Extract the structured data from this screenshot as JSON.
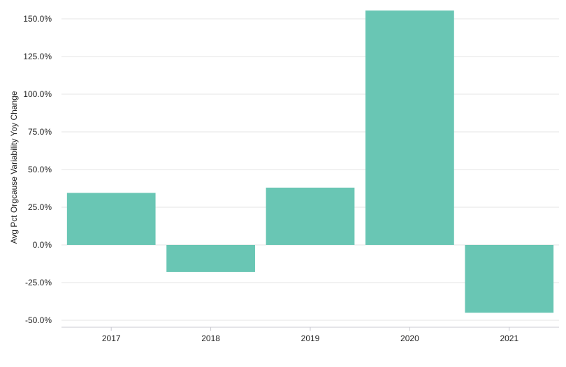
{
  "chart_data": {
    "type": "bar",
    "categories": [
      "2017",
      "2018",
      "2019",
      "2020",
      "2021"
    ],
    "values": [
      34.5,
      -18.0,
      38.0,
      155.5,
      -45.0
    ],
    "title": "",
    "xlabel": "",
    "ylabel": "Avg Pct Orgcause Variability Yoy Change",
    "ylim": [
      -55,
      158
    ],
    "yticks": [
      -50,
      -25,
      0,
      25,
      50,
      75,
      100,
      125,
      150
    ],
    "ytick_labels": [
      "-50.0%",
      "-25.0%",
      "0.0%",
      "25.0%",
      "50.0%",
      "75.0%",
      "100.0%",
      "125.0%",
      "150.0%"
    ],
    "grid": true,
    "legend": "none",
    "colors": {
      "bar": "#69c6b4",
      "grid": "#e6e6e6",
      "axis": "#c8c8d0"
    }
  }
}
